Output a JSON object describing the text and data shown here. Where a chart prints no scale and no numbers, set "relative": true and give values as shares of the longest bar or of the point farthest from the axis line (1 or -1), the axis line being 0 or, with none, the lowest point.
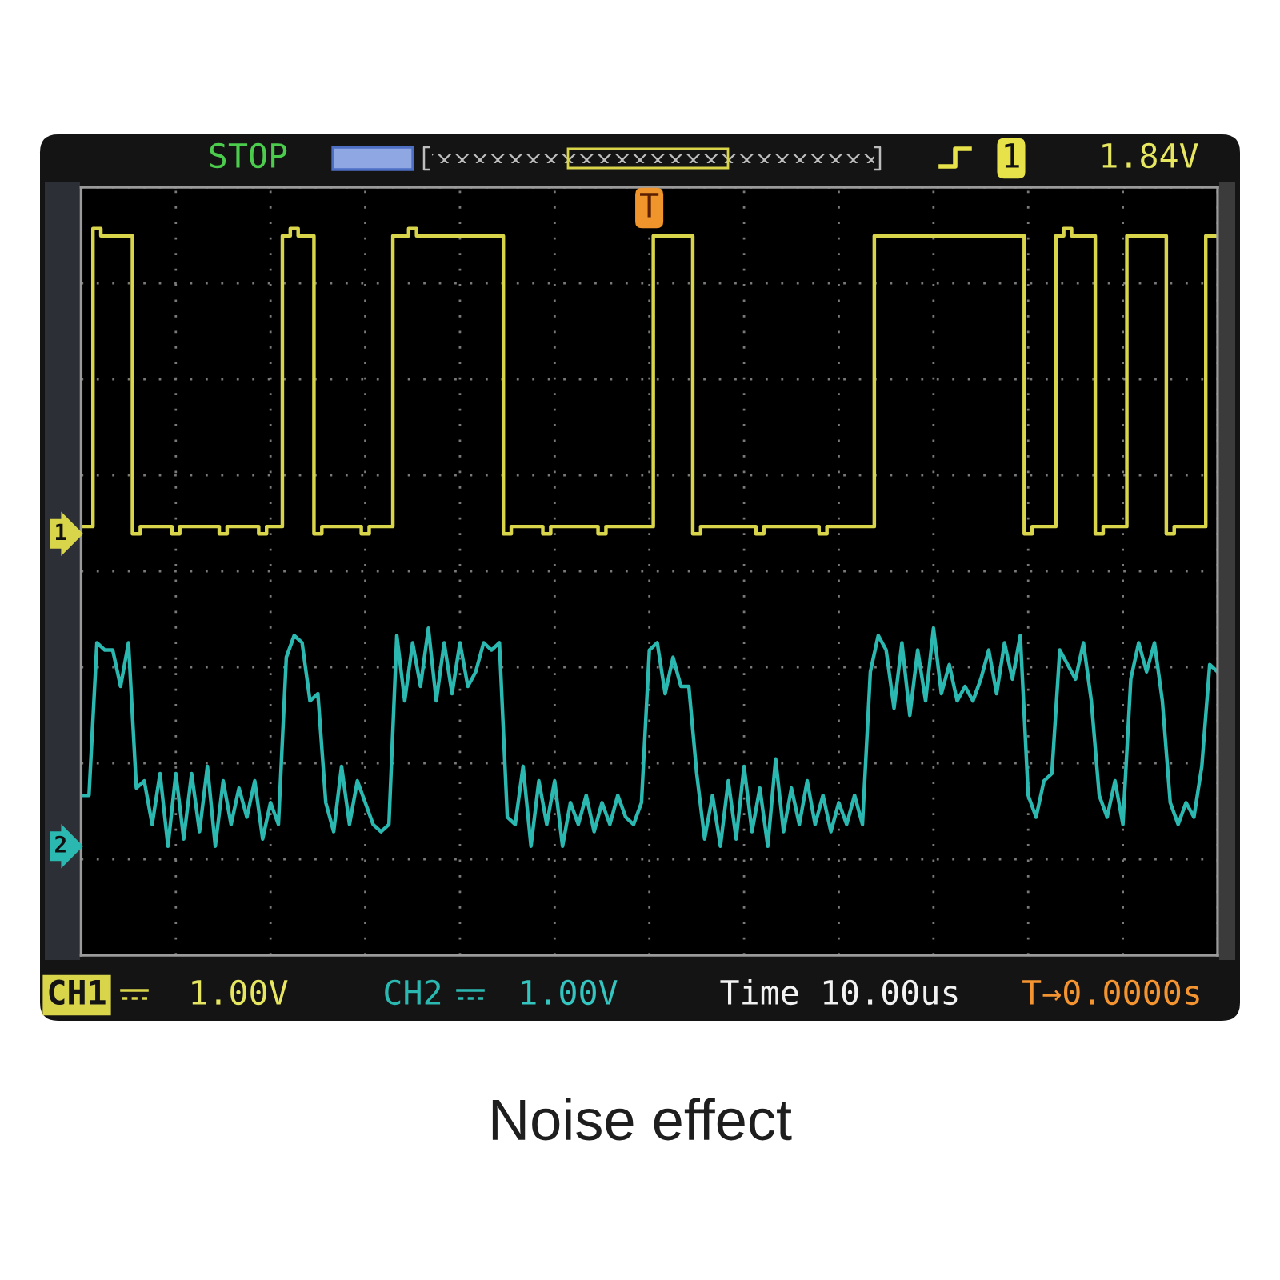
{
  "chart_data": {
    "type": "line",
    "title": "Noise effect",
    "relative": true,
    "grid": true,
    "legend": "bottom",
    "categories": [
      null,
      null,
      null,
      null,
      null,
      null,
      null,
      null,
      null,
      null,
      null,
      null,
      null,
      null,
      null,
      null,
      null,
      null,
      null,
      null,
      null,
      null,
      null,
      null,
      null,
      null,
      null,
      null,
      null,
      null,
      null,
      null,
      null,
      null,
      null,
      null,
      null,
      null,
      null,
      null,
      null,
      null,
      null,
      null,
      null,
      null,
      null,
      null,
      null,
      null,
      null,
      null,
      null,
      null,
      null,
      null,
      null,
      null,
      null,
      null,
      null,
      null,
      null,
      null,
      null,
      null,
      null,
      null,
      null,
      null,
      null,
      null,
      null,
      null,
      null,
      null,
      null,
      null,
      null,
      null,
      null,
      null,
      null,
      null,
      null,
      null,
      null,
      null,
      null,
      null,
      null,
      null,
      null,
      null,
      null,
      null,
      null,
      null,
      null,
      null,
      null,
      null,
      null,
      null,
      null,
      null,
      null,
      null,
      null,
      null,
      null,
      null,
      null,
      null,
      null,
      null,
      null,
      null,
      null,
      null,
      null,
      null,
      null,
      null,
      null,
      null,
      null,
      null,
      null,
      null,
      null,
      null,
      null,
      null,
      null,
      null,
      null,
      null,
      null,
      null,
      null,
      null,
      null,
      null,
      null
    ],
    "series": [
      {
        "name": "CH1",
        "type": "step",
        "color": "#d9d54b",
        "values": [
          0.59,
          0.59,
          1.0,
          0.99,
          0.99,
          0.99,
          0.99,
          0.58,
          0.59,
          0.59,
          0.59,
          0.59,
          0.58,
          0.59,
          0.59,
          0.59,
          0.59,
          0.59,
          0.58,
          0.59,
          0.59,
          0.59,
          0.59,
          0.58,
          0.59,
          0.59,
          0.99,
          1.0,
          0.99,
          0.99,
          0.58,
          0.59,
          0.59,
          0.59,
          0.59,
          0.59,
          0.58,
          0.59,
          0.59,
          0.59,
          0.99,
          0.99,
          1.0,
          0.99,
          0.99,
          0.99,
          0.99,
          0.99,
          0.99,
          0.99,
          0.99,
          0.99,
          0.99,
          0.99,
          0.58,
          0.59,
          0.59,
          0.59,
          0.59,
          0.58,
          0.59,
          0.59,
          0.59,
          0.59,
          0.59,
          0.59,
          0.58,
          0.59,
          0.59,
          0.59,
          0.59,
          0.59,
          0.59,
          0.99,
          0.99,
          0.99,
          0.99,
          0.99,
          0.58,
          0.59,
          0.59,
          0.59,
          0.59,
          0.59,
          0.59,
          0.59,
          0.58,
          0.59,
          0.59,
          0.59,
          0.59,
          0.59,
          0.59,
          0.59,
          0.58,
          0.59,
          0.59,
          0.59,
          0.59,
          0.59,
          0.59,
          0.99,
          0.99,
          0.99,
          0.99,
          0.99,
          0.99,
          0.99,
          0.99,
          0.99,
          0.99,
          0.99,
          0.99,
          0.99,
          0.99,
          0.99,
          0.99,
          0.99,
          0.99,
          0.99,
          0.58,
          0.59,
          0.59,
          0.59,
          0.99,
          1.0,
          0.99,
          0.99,
          0.99,
          0.58,
          0.59,
          0.59,
          0.59,
          0.99,
          0.99,
          0.99,
          0.99,
          0.99,
          0.58,
          0.59,
          0.59,
          0.59,
          0.59,
          0.99,
          0.99
        ]
      },
      {
        "name": "CH2",
        "color": "#2bb8b1",
        "values": [
          0.22,
          0.22,
          0.43,
          0.42,
          0.42,
          0.37,
          0.43,
          0.23,
          0.24,
          0.18,
          0.25,
          0.15,
          0.25,
          0.16,
          0.25,
          0.17,
          0.26,
          0.15,
          0.24,
          0.18,
          0.23,
          0.19,
          0.24,
          0.16,
          0.21,
          0.18,
          0.41,
          0.44,
          0.43,
          0.35,
          0.36,
          0.21,
          0.17,
          0.26,
          0.18,
          0.24,
          0.21,
          0.18,
          0.17,
          0.18,
          0.44,
          0.35,
          0.43,
          0.37,
          0.45,
          0.35,
          0.43,
          0.36,
          0.43,
          0.37,
          0.39,
          0.43,
          0.42,
          0.43,
          0.19,
          0.18,
          0.26,
          0.15,
          0.24,
          0.18,
          0.24,
          0.15,
          0.21,
          0.18,
          0.22,
          0.17,
          0.21,
          0.18,
          0.22,
          0.19,
          0.18,
          0.21,
          0.42,
          0.43,
          0.36,
          0.41,
          0.37,
          0.37,
          0.25,
          0.16,
          0.22,
          0.15,
          0.24,
          0.16,
          0.26,
          0.17,
          0.23,
          0.15,
          0.27,
          0.17,
          0.23,
          0.18,
          0.24,
          0.18,
          0.22,
          0.17,
          0.21,
          0.18,
          0.22,
          0.18,
          0.39,
          0.44,
          0.42,
          0.34,
          0.43,
          0.33,
          0.42,
          0.35,
          0.45,
          0.36,
          0.4,
          0.35,
          0.37,
          0.35,
          0.38,
          0.42,
          0.36,
          0.43,
          0.38,
          0.44,
          0.22,
          0.19,
          0.24,
          0.25,
          0.42,
          0.4,
          0.38,
          0.43,
          0.35,
          0.22,
          0.19,
          0.24,
          0.18,
          0.38,
          0.43,
          0.39,
          0.43,
          0.35,
          0.21,
          0.18,
          0.21,
          0.19,
          0.26,
          0.4,
          0.39
        ]
      }
    ],
    "annotations": [
      "STOP",
      "1",
      "1.84V",
      "T",
      "1",
      "2",
      "1.00V",
      "1.00V",
      "Time 10.00us",
      "T→0.0000s"
    ]
  }
}
